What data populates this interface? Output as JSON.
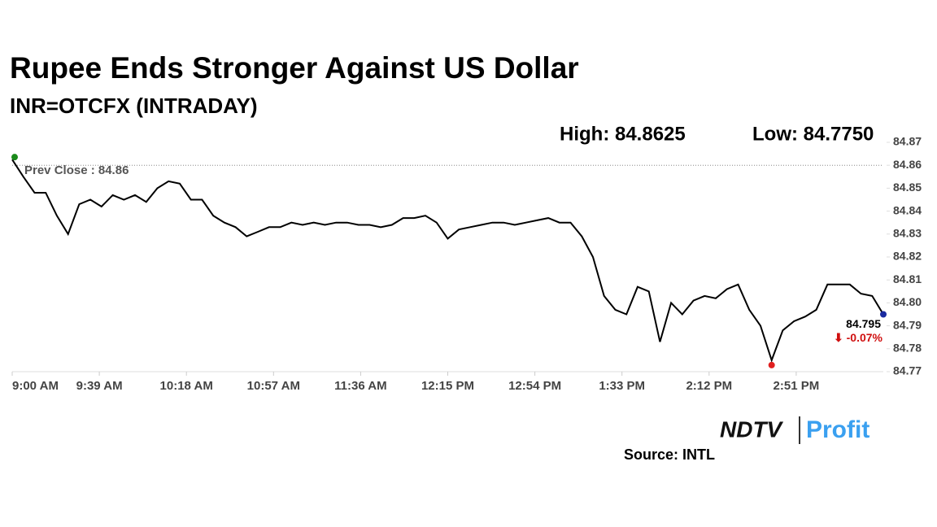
{
  "chart_data": {
    "type": "line",
    "title": "Rupee Ends Stronger Against US Dollar",
    "subtitle": "INR=OTCFX (INTRADAY)",
    "high_label": "High: 84.8625",
    "low_label": "Low: 84.7750",
    "prev_close": 84.86,
    "prev_close_label": "Prev Close : 84.86",
    "last_label": "84.795",
    "change_label": "⬇ -0.07%",
    "brand": "NDTV",
    "brand_sub": "Profit",
    "source": "Source: INTL",
    "color": "#000000",
    "x": [
      "9:00 AM",
      "9:05 AM",
      "9:10 AM",
      "9:15 AM",
      "9:20 AM",
      "9:25 AM",
      "9:30 AM",
      "9:35 AM",
      "9:40 AM",
      "9:45 AM",
      "9:50 AM",
      "9:55 AM",
      "10:00 AM",
      "10:05 AM",
      "10:10 AM",
      "10:15 AM",
      "10:20 AM",
      "10:25 AM",
      "10:30 AM",
      "10:35 AM",
      "10:40 AM",
      "10:45 AM",
      "10:50 AM",
      "10:55 AM",
      "11:00 AM",
      "11:05 AM",
      "11:10 AM",
      "11:15 AM",
      "11:20 AM",
      "11:25 AM",
      "11:30 AM",
      "11:35 AM",
      "11:40 AM",
      "11:45 AM",
      "11:50 AM",
      "11:55 AM",
      "12:00 PM",
      "12:05 PM",
      "12:10 PM",
      "12:15 PM",
      "12:20 PM",
      "12:25 PM",
      "12:30 PM",
      "12:35 PM",
      "12:40 PM",
      "12:45 PM",
      "12:50 PM",
      "12:55 PM",
      "1:00 PM",
      "1:05 PM",
      "1:10 PM",
      "1:15 PM",
      "1:20 PM",
      "1:25 PM",
      "1:30 PM",
      "1:35 PM",
      "1:40 PM",
      "1:45 PM",
      "1:50 PM",
      "1:55 PM",
      "2:00 PM",
      "2:05 PM",
      "2:10 PM",
      "2:15 PM",
      "2:20 PM",
      "2:25 PM",
      "2:30 PM",
      "2:35 PM",
      "2:40 PM",
      "2:45 PM",
      "2:50 PM",
      "2:55 PM",
      "3:00 PM",
      "3:05 PM",
      "3:10 PM",
      "3:15 PM",
      "3:20 PM",
      "3:25 PM",
      "3:30 PM"
    ],
    "values": [
      84.8625,
      84.855,
      84.848,
      84.848,
      84.838,
      84.83,
      84.843,
      84.845,
      84.842,
      84.847,
      84.845,
      84.847,
      84.844,
      84.85,
      84.853,
      84.852,
      84.845,
      84.845,
      84.838,
      84.835,
      84.833,
      84.829,
      84.831,
      84.833,
      84.833,
      84.835,
      84.834,
      84.835,
      84.834,
      84.835,
      84.835,
      84.834,
      84.834,
      84.833,
      84.834,
      84.837,
      84.837,
      84.838,
      84.835,
      84.828,
      84.832,
      84.833,
      84.834,
      84.835,
      84.835,
      84.834,
      84.835,
      84.836,
      84.837,
      84.835,
      84.835,
      84.829,
      84.82,
      84.803,
      84.797,
      84.795,
      84.807,
      84.805,
      84.783,
      84.8,
      84.795,
      84.801,
      84.803,
      84.802,
      84.806,
      84.808,
      84.797,
      84.79,
      84.775,
      84.788,
      84.792,
      84.794,
      84.797,
      84.808,
      84.808,
      84.808,
      84.804,
      84.803,
      84.795
    ],
    "xticks": [
      "9:00 AM",
      "9:39 AM",
      "10:18 AM",
      "10:57 AM",
      "11:36 AM",
      "12:15 PM",
      "12:54 PM",
      "1:33 PM",
      "2:12 PM",
      "2:51 PM"
    ],
    "ylim": [
      84.77,
      84.87
    ],
    "yticks": [
      84.77,
      84.78,
      84.79,
      {
        "value": 84.8,
        "label": "84.80"
      },
      84.81,
      84.82,
      84.83,
      84.84,
      84.85,
      84.86,
      84.87
    ],
    "grid": false
  }
}
